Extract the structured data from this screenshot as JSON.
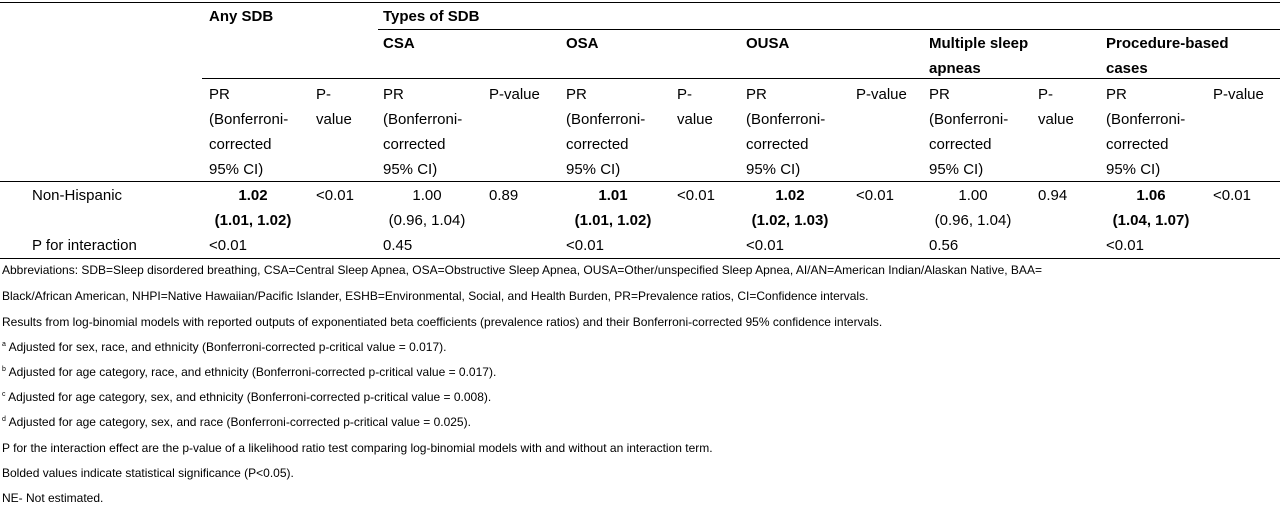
{
  "header": {
    "any_sdb": "Any SDB",
    "types_of_sdb": "Types of SDB",
    "groups": [
      "CSA",
      "OSA",
      "OUSA",
      "Multiple sleep apneas",
      "Procedure-based cases"
    ],
    "pr_label_lines": [
      "PR",
      "(Bonferroni-",
      "corrected",
      "95% CI)"
    ],
    "pvalue_split": [
      "P-",
      "value"
    ],
    "pvalue": "P-value"
  },
  "rows": {
    "non_hispanic": {
      "label": "Non-Hispanic",
      "cells": [
        {
          "pr": "1.02",
          "ci": "(1.01, 1.02)",
          "bold": true,
          "p": "<0.01"
        },
        {
          "pr": "1.00",
          "ci": "(0.96, 1.04)",
          "bold": false,
          "p": "0.89"
        },
        {
          "pr": "1.01",
          "ci": "(1.01, 1.02)",
          "bold": true,
          "p": "<0.01"
        },
        {
          "pr": "1.02",
          "ci": "(1.02, 1.03)",
          "bold": true,
          "p": "<0.01"
        },
        {
          "pr": "1.00",
          "ci": "(0.96, 1.04)",
          "bold": false,
          "p": "0.94"
        },
        {
          "pr": "1.06",
          "ci": "(1.04, 1.07)",
          "bold": true,
          "p": "<0.01"
        }
      ]
    },
    "interaction": {
      "label": "P for interaction",
      "values": [
        "<0.01",
        "0.45",
        "<0.01",
        "<0.01",
        "0.56",
        "<0.01"
      ]
    }
  },
  "footnotes": {
    "abbrev_1": "Abbreviations: SDB=Sleep disordered breathing, CSA=Central Sleep Apnea, OSA=Obstructive Sleep Apnea, OUSA=Other/unspecified Sleep Apnea, AI/AN=American Indian/Alaskan Native, BAA=",
    "abbrev_2": "Black/African American, NHPI=Native Hawaiian/Pacific Islander, ESHB=Environmental, Social, and Health Burden, PR=Prevalence ratios, CI=Confidence intervals.",
    "results": "Results from log-binomial models with reported outputs of exponentiated beta coefficients (prevalence ratios) and their Bonferroni-corrected 95% confidence intervals.",
    "a_mark": "a",
    "a": " Adjusted for sex, race, and ethnicity (Bonferroni-corrected p-critical value = 0.017).",
    "b_mark": "b",
    "b": " Adjusted for age category, race, and ethnicity (Bonferroni-corrected p-critical value = 0.017).",
    "c_mark": "c",
    "c": " Adjusted for age category, sex, and ethnicity (Bonferroni-corrected p-critical value = 0.008).",
    "d_mark": "d",
    "d": " Adjusted for age category, sex, and race (Bonferroni-corrected p-critical value = 0.025).",
    "p_interaction": "P for the interaction effect are the p-value of a likelihood ratio test comparing log-binomial models with and without an interaction term.",
    "bolded": "Bolded values indicate statistical significance (P<0.05).",
    "ne": "NE- Not estimated."
  }
}
